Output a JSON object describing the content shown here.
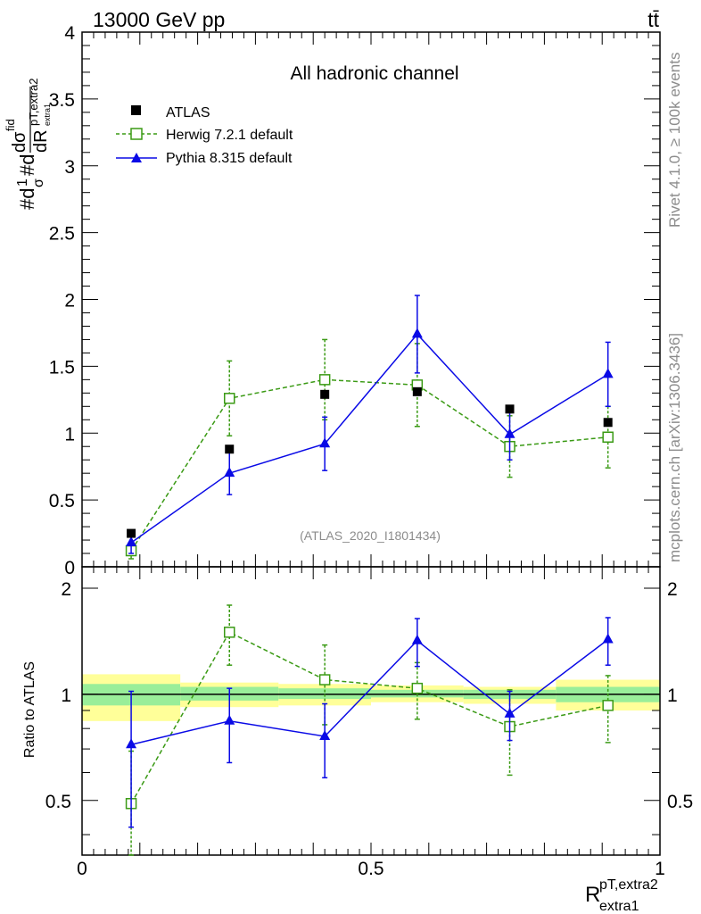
{
  "header": {
    "energy_label": "13000 GeV pp",
    "process_label": "tt̄"
  },
  "side_text": {
    "rivet": "Rivet 4.1.0, ≥ 100k events",
    "mcplots": "mcplots.cern.ch [arXiv:1306.3436]"
  },
  "colors": {
    "atlas": "#000000",
    "herwig": "#3a9a14",
    "pythia": "#0a0ae6",
    "band_inner": "#99ee99",
    "band_outer": "#ffff99"
  },
  "chart_data": [
    {
      "type": "scatter",
      "title": "All hadronic channel",
      "analysis_label": "(ATLAS_2020_I1801434)",
      "ylabel": "#d¹/σ#d dσ^fid / dR^pT,extra2_extra1",
      "ylabel_parts": {
        "a": "#d",
        "b": "1",
        "c": "σ",
        "d": "#d",
        "num": "dσ",
        "num_sup": "fid",
        "den": "dR",
        "den_sup": "pT,extra2",
        "den_sub": "extra1"
      },
      "xlim": [
        0,
        1
      ],
      "ylim": [
        0,
        4
      ],
      "y_ticks": [
        0,
        0.5,
        1,
        1.5,
        2,
        2.5,
        3,
        3.5,
        4
      ],
      "y_tick_labels": [
        "0",
        "0.5",
        "1",
        "1.5",
        "2",
        "2.5",
        "3",
        "3.5",
        "4"
      ],
      "legend": {
        "position": "top-left",
        "atlas": "ATLAS",
        "herwig": "Herwig 7.2.1 default",
        "pythia": "Pythia 8.315 default"
      },
      "bin_edges": [
        0,
        0.17,
        0.34,
        0.5,
        0.66,
        0.82,
        1.0
      ],
      "x": [
        0.085,
        0.255,
        0.42,
        0.58,
        0.74,
        0.91
      ],
      "series": [
        {
          "name": "ATLAS",
          "values": [
            0.25,
            0.88,
            1.29,
            1.31,
            1.18,
            1.08
          ],
          "err": [
            0,
            0,
            0,
            0,
            0,
            0
          ]
        },
        {
          "name": "Herwig 7.2.1 default",
          "values": [
            0.12,
            1.26,
            1.4,
            1.36,
            0.9,
            0.97
          ],
          "err": [
            0.06,
            0.28,
            0.3,
            0.31,
            0.23,
            0.23
          ]
        },
        {
          "name": "Pythia 8.315 default",
          "values": [
            0.18,
            0.7,
            0.92,
            1.74,
            0.99,
            1.44
          ],
          "err": [
            0.08,
            0.16,
            0.2,
            0.29,
            0.19,
            0.24
          ]
        }
      ]
    },
    {
      "type": "scatter",
      "ylabel": "Ratio to ATLAS",
      "xlabel": "R",
      "xlabel_sup": "pT,extra2",
      "xlabel_sub": "extra1",
      "xlim": [
        0,
        1
      ],
      "ylim": [
        0.35,
        2.3
      ],
      "y_ticks": [
        0.5,
        1,
        2
      ],
      "y_tick_labels": [
        "0.5",
        "1",
        "2"
      ],
      "x_ticks": [
        0,
        0.5,
        1
      ],
      "x_tick_labels": [
        "0",
        "0.5",
        "1"
      ],
      "band_inner": [
        [
          0.93,
          1.07
        ],
        [
          0.96,
          1.05
        ],
        [
          0.97,
          1.04
        ],
        [
          0.98,
          1.03
        ],
        [
          0.97,
          1.03
        ],
        [
          0.95,
          1.05
        ]
      ],
      "band_outer": [
        [
          0.84,
          1.14
        ],
        [
          0.92,
          1.08
        ],
        [
          0.93,
          1.07
        ],
        [
          0.95,
          1.06
        ],
        [
          0.94,
          1.05
        ],
        [
          0.9,
          1.1
        ]
      ],
      "series": [
        {
          "name": "Herwig 7.2.1 default",
          "values": [
            0.49,
            1.5,
            1.1,
            1.04,
            0.81,
            0.93
          ],
          "err": [
            0.2,
            0.29,
            0.28,
            0.19,
            0.22,
            0.2
          ]
        },
        {
          "name": "Pythia 8.315 default",
          "values": [
            0.72,
            0.84,
            0.76,
            1.42,
            0.88,
            1.43
          ],
          "err": [
            0.3,
            0.2,
            0.18,
            0.22,
            0.14,
            0.22
          ]
        }
      ]
    }
  ]
}
